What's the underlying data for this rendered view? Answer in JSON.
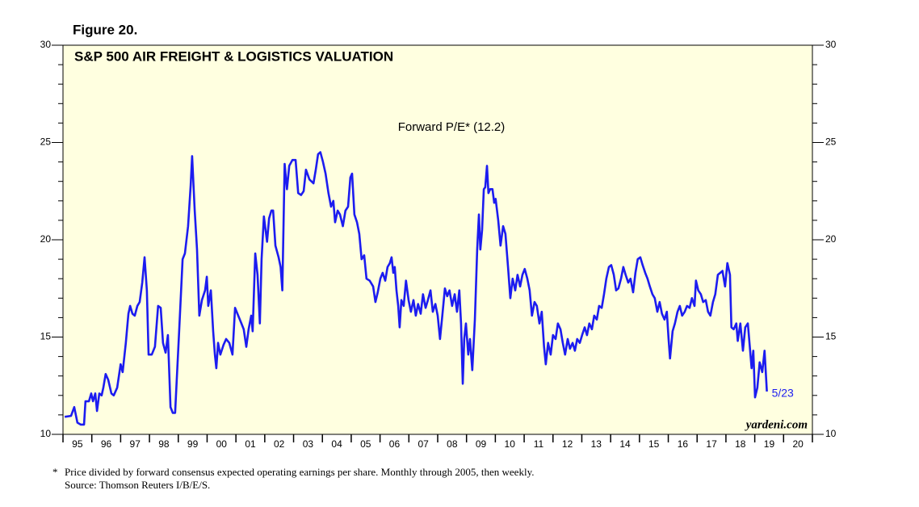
{
  "chart_data": {
    "type": "line",
    "figure_label": "Figure 20.",
    "title": "S&P 500 AIR FREIGHT & LOGISTICS VALUATION",
    "end_label": "5/23",
    "watermark": "yardeni.com",
    "footnote_marker": "*",
    "footnote": "Price divided by forward consensus expected operating earnings per share. Monthly through 2005, then weekly.",
    "source": "Source: Thomson Reuters I/B/E/S.",
    "background": "#ffffe0",
    "xlim": [
      1995,
      2021
    ],
    "xticks": [
      {
        "value": 1995.5,
        "label": "95"
      },
      {
        "value": 1996.5,
        "label": "96"
      },
      {
        "value": 1997.5,
        "label": "97"
      },
      {
        "value": 1998.5,
        "label": "98"
      },
      {
        "value": 1999.5,
        "label": "99"
      },
      {
        "value": 2000.5,
        "label": "00"
      },
      {
        "value": 2001.5,
        "label": "01"
      },
      {
        "value": 2002.5,
        "label": "02"
      },
      {
        "value": 2003.5,
        "label": "03"
      },
      {
        "value": 2004.5,
        "label": "04"
      },
      {
        "value": 2005.5,
        "label": "05"
      },
      {
        "value": 2006.5,
        "label": "06"
      },
      {
        "value": 2007.5,
        "label": "07"
      },
      {
        "value": 2008.5,
        "label": "08"
      },
      {
        "value": 2009.5,
        "label": "09"
      },
      {
        "value": 2010.5,
        "label": "10"
      },
      {
        "value": 2011.5,
        "label": "11"
      },
      {
        "value": 2012.5,
        "label": "12"
      },
      {
        "value": 2013.5,
        "label": "13"
      },
      {
        "value": 2014.5,
        "label": "14"
      },
      {
        "value": 2015.5,
        "label": "15"
      },
      {
        "value": 2016.5,
        "label": "16"
      },
      {
        "value": 2017.5,
        "label": "17"
      },
      {
        "value": 2018.5,
        "label": "18"
      },
      {
        "value": 2019.5,
        "label": "19"
      },
      {
        "value": 2020.5,
        "label": "20"
      }
    ],
    "ylim": [
      10,
      30
    ],
    "yticks": [
      10,
      15,
      20,
      25,
      30
    ],
    "y2lim": [
      10,
      30
    ],
    "y2ticks": [
      10,
      15,
      20,
      25,
      30
    ],
    "x": [
      1995.06,
      1995.28,
      1995.39,
      1995.5,
      1995.62,
      1995.73,
      1995.78,
      1995.9,
      1995.98,
      1996.04,
      1996.12,
      1996.18,
      1996.26,
      1996.34,
      1996.4,
      1996.48,
      1996.57,
      1996.68,
      1996.76,
      1996.88,
      1997.0,
      1997.07,
      1997.18,
      1997.27,
      1997.33,
      1997.41,
      1997.49,
      1997.58,
      1997.66,
      1997.75,
      1997.83,
      1997.91,
      1997.97,
      1998.08,
      1998.19,
      1998.3,
      1998.39,
      1998.47,
      1998.56,
      1998.64,
      1998.73,
      1998.81,
      1998.89,
      1999.03,
      1999.15,
      1999.23,
      1999.34,
      1999.43,
      1999.48,
      1999.57,
      1999.65,
      1999.73,
      1999.82,
      1999.93,
      1999.99,
      2000.04,
      2000.13,
      2000.21,
      2000.27,
      2000.32,
      2000.38,
      2000.46,
      2000.57,
      2000.66,
      2000.77,
      2000.88,
      2000.97,
      2001.08,
      2001.19,
      2001.27,
      2001.36,
      2001.44,
      2001.53,
      2001.58,
      2001.67,
      2001.75,
      2001.83,
      2001.89,
      2001.97,
      2002.08,
      2002.15,
      2002.23,
      2002.29,
      2002.37,
      2002.48,
      2002.55,
      2002.61,
      2002.69,
      2002.77,
      2002.85,
      2002.96,
      2003.07,
      2003.16,
      2003.26,
      2003.35,
      2003.43,
      2003.55,
      2003.69,
      2003.77,
      2003.85,
      2003.93,
      2004.02,
      2004.11,
      2004.21,
      2004.3,
      2004.38,
      2004.44,
      2004.53,
      2004.61,
      2004.71,
      2004.8,
      2004.89,
      2004.97,
      2005.03,
      2005.11,
      2005.2,
      2005.28,
      2005.36,
      2005.45,
      2005.53,
      2005.64,
      2005.76,
      2005.84,
      2005.92,
      2006.01,
      2006.09,
      2006.18,
      2006.26,
      2006.34,
      2006.4,
      2006.46,
      2006.51,
      2006.57,
      2006.63,
      2006.68,
      2006.74,
      2006.82,
      2006.9,
      2006.99,
      2007.07,
      2007.16,
      2007.24,
      2007.32,
      2007.41,
      2007.49,
      2007.58,
      2007.66,
      2007.75,
      2007.83,
      2007.92,
      2008.0,
      2008.08,
      2008.16,
      2008.25,
      2008.33,
      2008.41,
      2008.5,
      2008.59,
      2008.67,
      2008.75,
      2008.81,
      2008.87,
      2008.92,
      2008.98,
      2009.06,
      2009.12,
      2009.2,
      2009.29,
      2009.37,
      2009.43,
      2009.48,
      2009.54,
      2009.6,
      2009.65,
      2009.71,
      2009.76,
      2009.82,
      2009.9,
      2009.96,
      2010.01,
      2010.1,
      2010.18,
      2010.27,
      2010.35,
      2010.44,
      2010.52,
      2010.6,
      2010.69,
      2010.77,
      2010.86,
      2010.94,
      2011.02,
      2011.11,
      2011.19,
      2011.27,
      2011.36,
      2011.44,
      2011.53,
      2011.61,
      2011.69,
      2011.75,
      2011.83,
      2011.92,
      2012.0,
      2012.09,
      2012.17,
      2012.26,
      2012.34,
      2012.42,
      2012.51,
      2012.59,
      2012.68,
      2012.76,
      2012.84,
      2012.93,
      2013.01,
      2013.1,
      2013.18,
      2013.26,
      2013.35,
      2013.43,
      2013.52,
      2013.6,
      2013.69,
      2013.77,
      2013.85,
      2013.94,
      2014.02,
      2014.11,
      2014.19,
      2014.27,
      2014.36,
      2014.44,
      2014.52,
      2014.61,
      2014.69,
      2014.78,
      2014.86,
      2014.94,
      2015.03,
      2015.11,
      2015.2,
      2015.28,
      2015.36,
      2015.45,
      2015.53,
      2015.62,
      2015.7,
      2015.78,
      2015.87,
      2015.95,
      2016.01,
      2016.06,
      2016.15,
      2016.23,
      2016.32,
      2016.4,
      2016.48,
      2016.57,
      2016.65,
      2016.74,
      2016.82,
      2016.91,
      2016.96,
      2017.04,
      2017.13,
      2017.21,
      2017.3,
      2017.38,
      2017.46,
      2017.55,
      2017.63,
      2017.72,
      2017.8,
      2017.88,
      2017.97,
      2018.05,
      2018.14,
      2018.19,
      2018.27,
      2018.36,
      2018.41,
      2018.5,
      2018.59,
      2018.67,
      2018.76,
      2018.84,
      2018.89,
      2018.95,
      2019.01,
      2019.09,
      2019.17,
      2019.26,
      2019.34,
      2019.42
    ],
    "series": [
      {
        "name": "Forward P/E* (12.2)",
        "color": "#1c1cf0",
        "values": [
          10.9,
          10.95,
          11.4,
          10.6,
          10.5,
          10.5,
          11.7,
          11.7,
          12.1,
          11.7,
          12.1,
          11.2,
          12.1,
          12.0,
          12.4,
          13.1,
          12.8,
          12.1,
          12.0,
          12.4,
          13.6,
          13.2,
          14.7,
          16.2,
          16.6,
          16.2,
          16.1,
          16.6,
          16.8,
          17.8,
          19.1,
          17.4,
          14.1,
          14.1,
          14.5,
          16.6,
          16.5,
          14.7,
          14.2,
          15.1,
          11.4,
          11.1,
          11.1,
          15.3,
          19.0,
          19.3,
          20.7,
          22.8,
          24.3,
          21.5,
          19.5,
          16.1,
          16.9,
          17.4,
          18.1,
          16.6,
          17.4,
          15.3,
          14.1,
          13.4,
          14.7,
          14.1,
          14.6,
          14.9,
          14.7,
          14.1,
          16.5,
          16.1,
          15.7,
          15.4,
          14.5,
          15.4,
          16.1,
          15.3,
          19.3,
          18.2,
          15.7,
          19.0,
          21.2,
          19.9,
          21.1,
          21.5,
          21.5,
          19.7,
          19.1,
          18.6,
          17.4,
          23.9,
          22.6,
          23.8,
          24.1,
          24.1,
          22.4,
          22.3,
          22.5,
          23.6,
          23.1,
          22.9,
          23.6,
          24.4,
          24.5,
          24.0,
          23.4,
          22.4,
          21.7,
          22.0,
          20.9,
          21.5,
          21.3,
          20.7,
          21.5,
          21.7,
          23.2,
          23.4,
          21.3,
          20.9,
          20.3,
          19.0,
          19.2,
          18.0,
          17.9,
          17.6,
          16.8,
          17.3,
          18.0,
          18.3,
          17.9,
          18.6,
          18.8,
          19.1,
          18.3,
          18.6,
          17.4,
          16.6,
          15.5,
          16.9,
          16.6,
          17.9,
          16.9,
          16.3,
          16.9,
          16.1,
          16.7,
          16.2,
          17.2,
          16.5,
          16.9,
          17.4,
          16.3,
          16.7,
          16.1,
          14.9,
          16.1,
          17.5,
          17.1,
          17.4,
          16.6,
          17.2,
          16.3,
          17.4,
          15.7,
          12.6,
          14.9,
          15.7,
          14.1,
          14.9,
          13.3,
          15.9,
          19.5,
          21.3,
          19.5,
          20.5,
          22.6,
          22.7,
          23.8,
          22.4,
          22.6,
          22.6,
          21.9,
          22.1,
          21.0,
          19.7,
          20.7,
          20.3,
          18.6,
          17.0,
          18.0,
          17.4,
          18.2,
          17.6,
          18.2,
          18.5,
          18.0,
          17.4,
          16.1,
          16.8,
          16.6,
          15.7,
          16.3,
          14.5,
          13.6,
          14.7,
          14.1,
          15.1,
          14.9,
          15.7,
          15.4,
          14.7,
          14.1,
          14.9,
          14.4,
          14.7,
          14.3,
          14.9,
          14.7,
          15.1,
          15.5,
          15.1,
          15.7,
          15.4,
          16.1,
          15.9,
          16.6,
          16.5,
          17.2,
          18.0,
          18.6,
          18.7,
          18.2,
          17.4,
          17.5,
          18.0,
          18.6,
          18.2,
          17.8,
          18.0,
          17.3,
          18.3,
          19.0,
          19.1,
          18.7,
          18.3,
          18.0,
          17.6,
          17.2,
          17.0,
          16.3,
          16.8,
          16.2,
          15.9,
          16.3,
          14.9,
          13.9,
          15.3,
          15.7,
          16.3,
          16.6,
          16.1,
          16.3,
          16.6,
          16.5,
          17.0,
          16.6,
          17.9,
          17.4,
          17.2,
          16.8,
          16.9,
          16.3,
          16.1,
          16.8,
          17.2,
          18.2,
          18.3,
          18.4,
          17.6,
          18.8,
          18.2,
          15.5,
          15.4,
          15.7,
          14.8,
          15.7,
          14.3,
          15.5,
          15.7,
          14.3,
          13.4,
          14.3,
          11.9,
          12.4,
          13.7,
          13.2,
          14.3,
          12.2
        ]
      }
    ]
  }
}
